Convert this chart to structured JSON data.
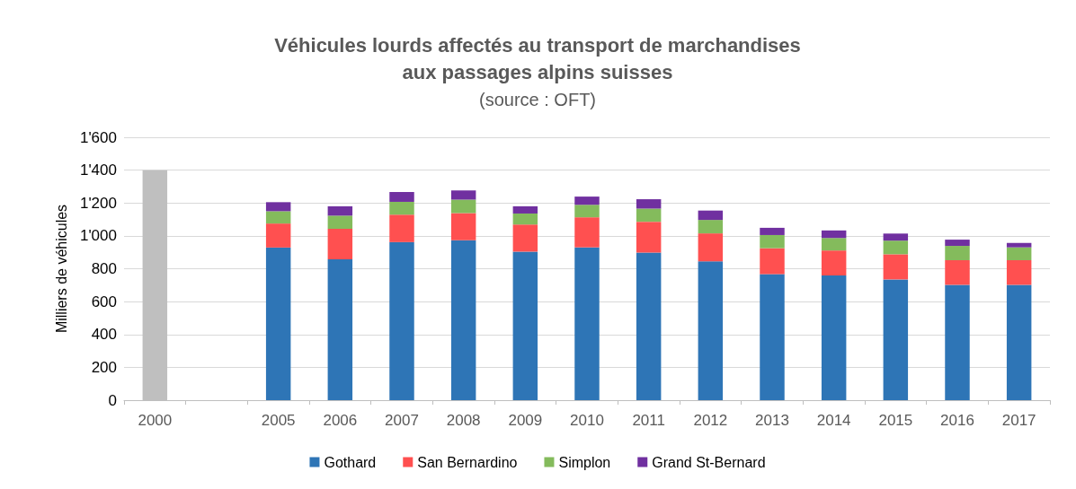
{
  "chart_data": {
    "type": "bar",
    "stacked": true,
    "title": "Véhicules lourds affectés au transport de marchandises\naux passages alpins suisses",
    "subtitle": "(source : OFT)",
    "ylabel": "Milliers de véhicules",
    "categories": [
      "2000",
      null,
      "2005",
      "2006",
      "2007",
      "2008",
      "2009",
      "2010",
      "2011",
      "2012",
      "2013",
      "2014",
      "2015",
      "2016",
      "2017"
    ],
    "series": [
      {
        "color": "#bfbfbf",
        "values": [
          1400,
          null,
          null,
          null,
          null,
          null,
          null,
          null,
          null,
          null,
          null,
          null,
          null,
          null,
          null
        ]
      },
      {
        "name": "Gothard",
        "color": "#2e75b6",
        "values": [
          null,
          null,
          929,
          857,
          962,
          974,
          904,
          930,
          898,
          845,
          767,
          759,
          735,
          702,
          702
        ]
      },
      {
        "name": "San Bernardino",
        "color": "#ff5050",
        "values": [
          null,
          null,
          146,
          186,
          167,
          164,
          165,
          183,
          188,
          170,
          158,
          152,
          153,
          150,
          150
        ]
      },
      {
        "name": "Simplon",
        "color": "#84bb5c",
        "values": [
          null,
          null,
          75,
          80,
          78,
          83,
          67,
          76,
          80,
          82,
          80,
          76,
          83,
          87,
          78
        ]
      },
      {
        "name": "Grand St-Bernard",
        "color": "#7030a0",
        "values": [
          null,
          null,
          55,
          57,
          60,
          56,
          44,
          50,
          57,
          57,
          44,
          46,
          43,
          38,
          27
        ]
      }
    ],
    "ylim": [
      0,
      1600
    ],
    "yticks": [
      0,
      200,
      400,
      600,
      800,
      {
        "value": 1000,
        "label": "1'000"
      },
      {
        "value": 1200,
        "label": "1'200"
      },
      {
        "value": 1400,
        "label": "1'400"
      },
      {
        "value": 1600,
        "label": "1'600"
      }
    ],
    "grid": "y",
    "legend": "bottom"
  }
}
